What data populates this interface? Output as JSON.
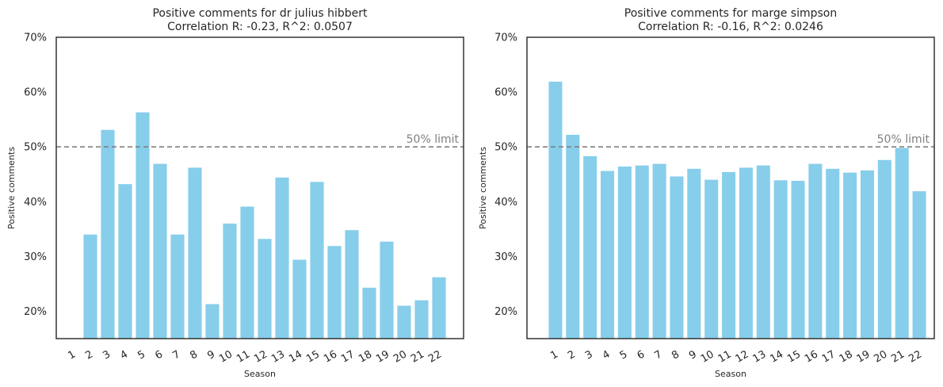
{
  "chart_data": [
    {
      "type": "bar",
      "title": "Positive comments for dr julius hibbert",
      "subtitle": "Correlation R: -0.23, R^2: 0.0507",
      "xlabel": "Season",
      "ylabel": "Positive comments",
      "ylim": [
        15,
        70
      ],
      "yticks": [
        "20%",
        "30%",
        "40%",
        "50%",
        "60%",
        "70%"
      ],
      "categories": [
        "1",
        "2",
        "3",
        "4",
        "5",
        "6",
        "7",
        "8",
        "9",
        "10",
        "11",
        "12",
        "13",
        "14",
        "15",
        "16",
        "17",
        "18",
        "19",
        "20",
        "21",
        "22"
      ],
      "values": [
        null,
        34.0,
        53.1,
        43.2,
        56.3,
        46.9,
        34.0,
        46.2,
        21.3,
        36.0,
        39.1,
        33.2,
        44.4,
        29.4,
        43.6,
        31.9,
        34.8,
        24.3,
        32.7,
        21.0,
        22.0,
        26.2
      ],
      "limit": {
        "value": 50,
        "label": "50% limit"
      },
      "bar_color": "#87ceeb",
      "limit_color": "#808080",
      "grid": false
    },
    {
      "type": "bar",
      "title": "Positive comments for marge simpson",
      "subtitle": "Correlation R: -0.16, R^2: 0.0246",
      "xlabel": "Season",
      "ylabel": "Positive comments",
      "ylim": [
        15,
        70
      ],
      "yticks": [
        "20%",
        "30%",
        "40%",
        "50%",
        "60%",
        "70%"
      ],
      "categories": [
        "1",
        "2",
        "3",
        "4",
        "5",
        "6",
        "7",
        "8",
        "9",
        "10",
        "11",
        "12",
        "13",
        "14",
        "15",
        "16",
        "17",
        "18",
        "19",
        "20",
        "21",
        "22"
      ],
      "values": [
        61.9,
        52.2,
        48.3,
        45.6,
        46.4,
        46.6,
        46.9,
        44.6,
        46.0,
        44.0,
        45.4,
        46.2,
        46.6,
        43.9,
        43.8,
        46.9,
        46.0,
        45.3,
        45.7,
        47.6,
        49.8,
        41.9
      ],
      "limit": {
        "value": 50,
        "label": "50% limit"
      },
      "bar_color": "#87ceeb",
      "limit_color": "#808080",
      "grid": false
    }
  ]
}
